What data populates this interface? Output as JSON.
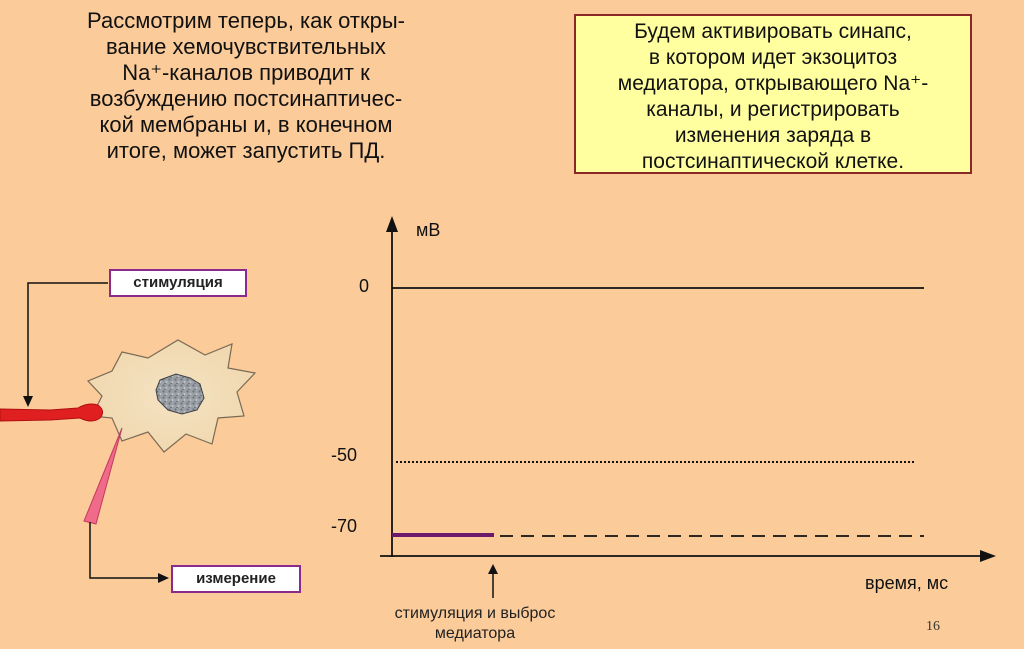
{
  "intro": {
    "lines": [
      "Рассмотрим теперь, как откры-",
      "вание хемочувствительных",
      "Na⁺-каналов приводит к",
      "возбуждению постсинаптичес-",
      "кой мембраны и, в конечном",
      "итоге, может запустить ПД."
    ]
  },
  "note": {
    "lines": [
      "Будем активировать синапс,",
      "в котором идет экзоцитоз",
      "медиатора, открывающего Na⁺-",
      "каналы, и регистрировать",
      "изменения заряда в",
      "постсинаптической клетке."
    ]
  },
  "labels": {
    "stimulation": "стимуляция",
    "measurement": "измерение"
  },
  "graph": {
    "y_unit": "мВ",
    "x_label": "время, мс",
    "ticks": [
      "0",
      "-50",
      "-70"
    ],
    "caption_lines": [
      "стимуляция и выброс",
      "медиатора"
    ]
  },
  "colors": {
    "background": "#fbcb99",
    "note_bg": "#ffffa0",
    "trace": "#6b1a6b",
    "electrode": "#e02020",
    "recording_electrode": "#f06a8a"
  },
  "slide_number": "16"
}
